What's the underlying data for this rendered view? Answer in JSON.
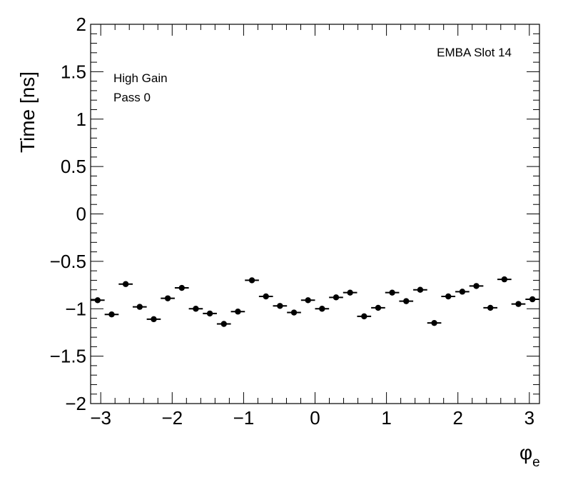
{
  "chart_data": {
    "type": "scatter",
    "ylabel": "Time [ns]",
    "xlabel": "φ",
    "xlabel_subscript": "e",
    "xlim": [
      -3.1416,
      3.1416
    ],
    "ylim": [
      -2,
      2
    ],
    "x_ticks": [
      -3,
      -2,
      -1,
      0,
      1,
      2,
      3
    ],
    "x_tick_labels": [
      "−3",
      "−2",
      "−1",
      "0",
      "1",
      "2",
      "3"
    ],
    "y_ticks": [
      -2,
      -1.5,
      -1,
      -0.5,
      0,
      0.5,
      1,
      1.5,
      2
    ],
    "y_tick_labels": [
      "−2",
      "−1.5",
      "−1",
      "−0.5",
      "0",
      "0.5",
      "1",
      "1.5",
      "2"
    ],
    "annotations": {
      "top_right": "EMBA Slot 14",
      "gain": "High Gain",
      "pass": "Pass 0"
    },
    "bin_width": 0.19635,
    "x": [
      -3.0434,
      -2.8471,
      -2.6507,
      -2.4544,
      -2.258,
      -2.0617,
      -1.8653,
      -1.669,
      -1.4726,
      -1.2763,
      -1.0799,
      -0.8836,
      -0.6872,
      -0.4909,
      -0.2945,
      -0.0982,
      0.0982,
      0.2945,
      0.4909,
      0.6872,
      0.8836,
      1.0799,
      1.2763,
      1.4726,
      1.669,
      1.8653,
      2.0617,
      2.258,
      2.4544,
      2.6507,
      2.8471,
      3.0434
    ],
    "y": [
      -0.91,
      -1.06,
      -0.74,
      -0.98,
      -1.11,
      -0.89,
      -0.78,
      -1.0,
      -1.05,
      -1.16,
      -1.03,
      -0.7,
      -0.87,
      -0.97,
      -1.04,
      -0.91,
      -1.0,
      -0.88,
      -0.83,
      -1.08,
      -0.99,
      -0.83,
      -0.92,
      -0.8,
      -1.15,
      -0.87,
      -0.82,
      -0.76,
      -0.99,
      -0.69,
      -0.95,
      -0.9
    ]
  }
}
